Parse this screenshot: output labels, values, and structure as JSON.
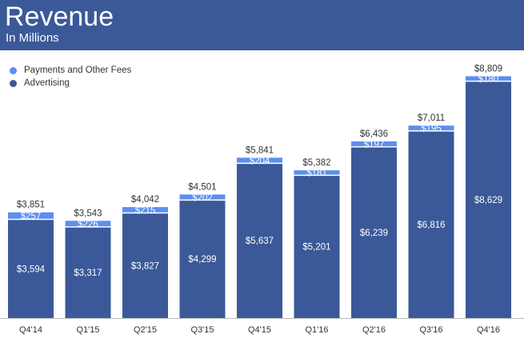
{
  "header": {
    "title": "Revenue",
    "subtitle": "In Millions"
  },
  "colors": {
    "header_bg": "#3b5998",
    "advertising": "#3b5998",
    "payments": "#5b8ff0"
  },
  "chart_data": {
    "type": "bar",
    "stacked": true,
    "title": "Revenue",
    "subtitle": "In Millions",
    "xlabel": "",
    "ylabel": "",
    "categories": [
      "Q4'14",
      "Q1'15",
      "Q2'15",
      "Q3'15",
      "Q4'15",
      "Q1'16",
      "Q2'16",
      "Q3'16",
      "Q4'16"
    ],
    "series": [
      {
        "name": "Advertising",
        "values": [
          3594,
          3317,
          3827,
          4299,
          5637,
          5201,
          6239,
          6816,
          8629
        ],
        "labels": [
          "$3,594",
          "$3,317",
          "$3,827",
          "$4,299",
          "$5,637",
          "$5,201",
          "$6,239",
          "$6,816",
          "$8,629"
        ]
      },
      {
        "name": "Payments and Other Fees",
        "values": [
          257,
          226,
          215,
          202,
          204,
          181,
          197,
          195,
          180
        ],
        "labels": [
          "$257",
          "$226",
          "$215",
          "$202",
          "$204",
          "$181",
          "$197",
          "$195",
          "$180"
        ]
      }
    ],
    "totals": [
      3851,
      3543,
      4042,
      4501,
      5841,
      5382,
      6436,
      7011,
      8809
    ],
    "total_labels": [
      "$3,851",
      "$3,543",
      "$4,042",
      "$4,501",
      "$5,841",
      "$5,382",
      "$6,436",
      "$7,011",
      "$8,809"
    ],
    "legend": [
      "Payments and Other Fees",
      "Advertising"
    ],
    "legend_position": "top-left",
    "grid": false
  }
}
